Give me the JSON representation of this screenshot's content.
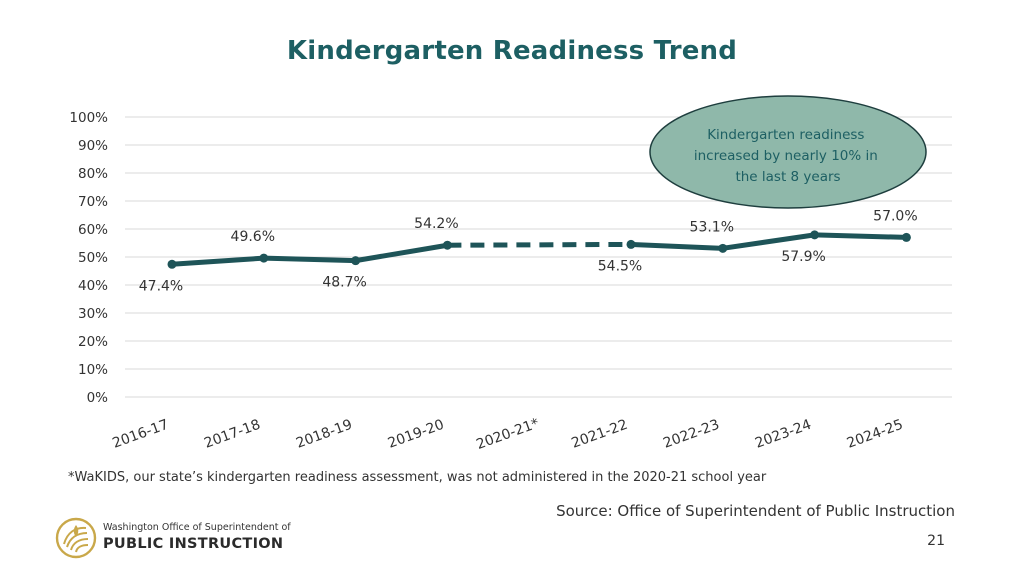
{
  "title": "Kindergarten Readiness Trend",
  "colors": {
    "title": "#1d5f63",
    "line": "#1e5458",
    "callout_fill": "#8fb8aa",
    "callout_stroke": "#1e3e3e",
    "callout_text": "#1d5f63",
    "grid": "#d9d9d9",
    "logo_gold": "#c9a84a"
  },
  "callout": {
    "lines": [
      "Kindergarten readiness",
      "increased by nearly 10% in",
      "the last 8 years"
    ]
  },
  "chart_data": {
    "type": "line",
    "categories": [
      "2016-17",
      "2017-18",
      "2018-19",
      "2019-20",
      "2020-21*",
      "2021-22",
      "2022-23",
      "2023-24",
      "2024-25"
    ],
    "y_ticks": [
      "100%",
      "90%",
      "80%",
      "70%",
      "60%",
      "50%",
      "40%",
      "30%",
      "20%",
      "10%",
      "0%"
    ],
    "ylim": [
      0,
      100
    ],
    "grid": true,
    "series": [
      {
        "values": [
          47.4,
          49.6,
          48.7,
          54.2,
          null,
          54.5,
          53.1,
          57.9,
          57.0
        ],
        "data_labels": [
          "47.4%",
          "49.6%",
          "48.7%",
          "54.2%",
          "",
          "54.5%",
          "53.1%",
          "57.9%",
          "57.0%"
        ],
        "gap_bridge": {
          "from": "2019-20",
          "to": "2021-22",
          "style": "dashed"
        }
      }
    ]
  },
  "footnote": "*WaKIDS, our state’s kindergarten readiness assessment, was not administered in the 2020-21 school year",
  "source": "Source: Office of Superintendent of Public Instruction",
  "page_number": "21",
  "logo": {
    "line1": "Washington Office of Superintendent of",
    "line2": "PUBLIC INSTRUCTION"
  }
}
